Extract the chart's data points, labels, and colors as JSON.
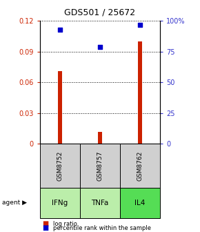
{
  "title": "GDS501 / 25672",
  "samples": [
    "GSM8752",
    "GSM8757",
    "GSM8762"
  ],
  "agents": [
    "IFNg",
    "TNFa",
    "IL4"
  ],
  "log_ratio": [
    0.071,
    0.012,
    0.1
  ],
  "percentile_rank": [
    0.926,
    0.788,
    0.97
  ],
  "bar_color": "#cc2200",
  "scatter_color": "#0000cc",
  "ylim_left": [
    0,
    0.12
  ],
  "ylim_right": [
    0,
    1.0
  ],
  "yticks_left": [
    0,
    0.03,
    0.06,
    0.09,
    0.12
  ],
  "yticks_right": [
    0,
    0.25,
    0.5,
    0.75,
    1.0
  ],
  "ytick_labels_right": [
    "0",
    "25",
    "50",
    "75",
    "100%"
  ],
  "ytick_labels_left": [
    "0",
    "0.03",
    "0.06",
    "0.09",
    "0.12"
  ],
  "gray_box_color": "#d0d0d0",
  "green_box_color_light": "#bbeeaa",
  "green_box_color_dark": "#66dd66",
  "agent_colors": [
    "#bbeeaa",
    "#bbeeaa",
    "#55dd55"
  ],
  "title_color": "#000000",
  "left_tick_color": "#cc2200",
  "right_tick_color": "#3333cc",
  "grid_color": "#000000",
  "background_color": "#ffffff",
  "bar_width": 0.12
}
